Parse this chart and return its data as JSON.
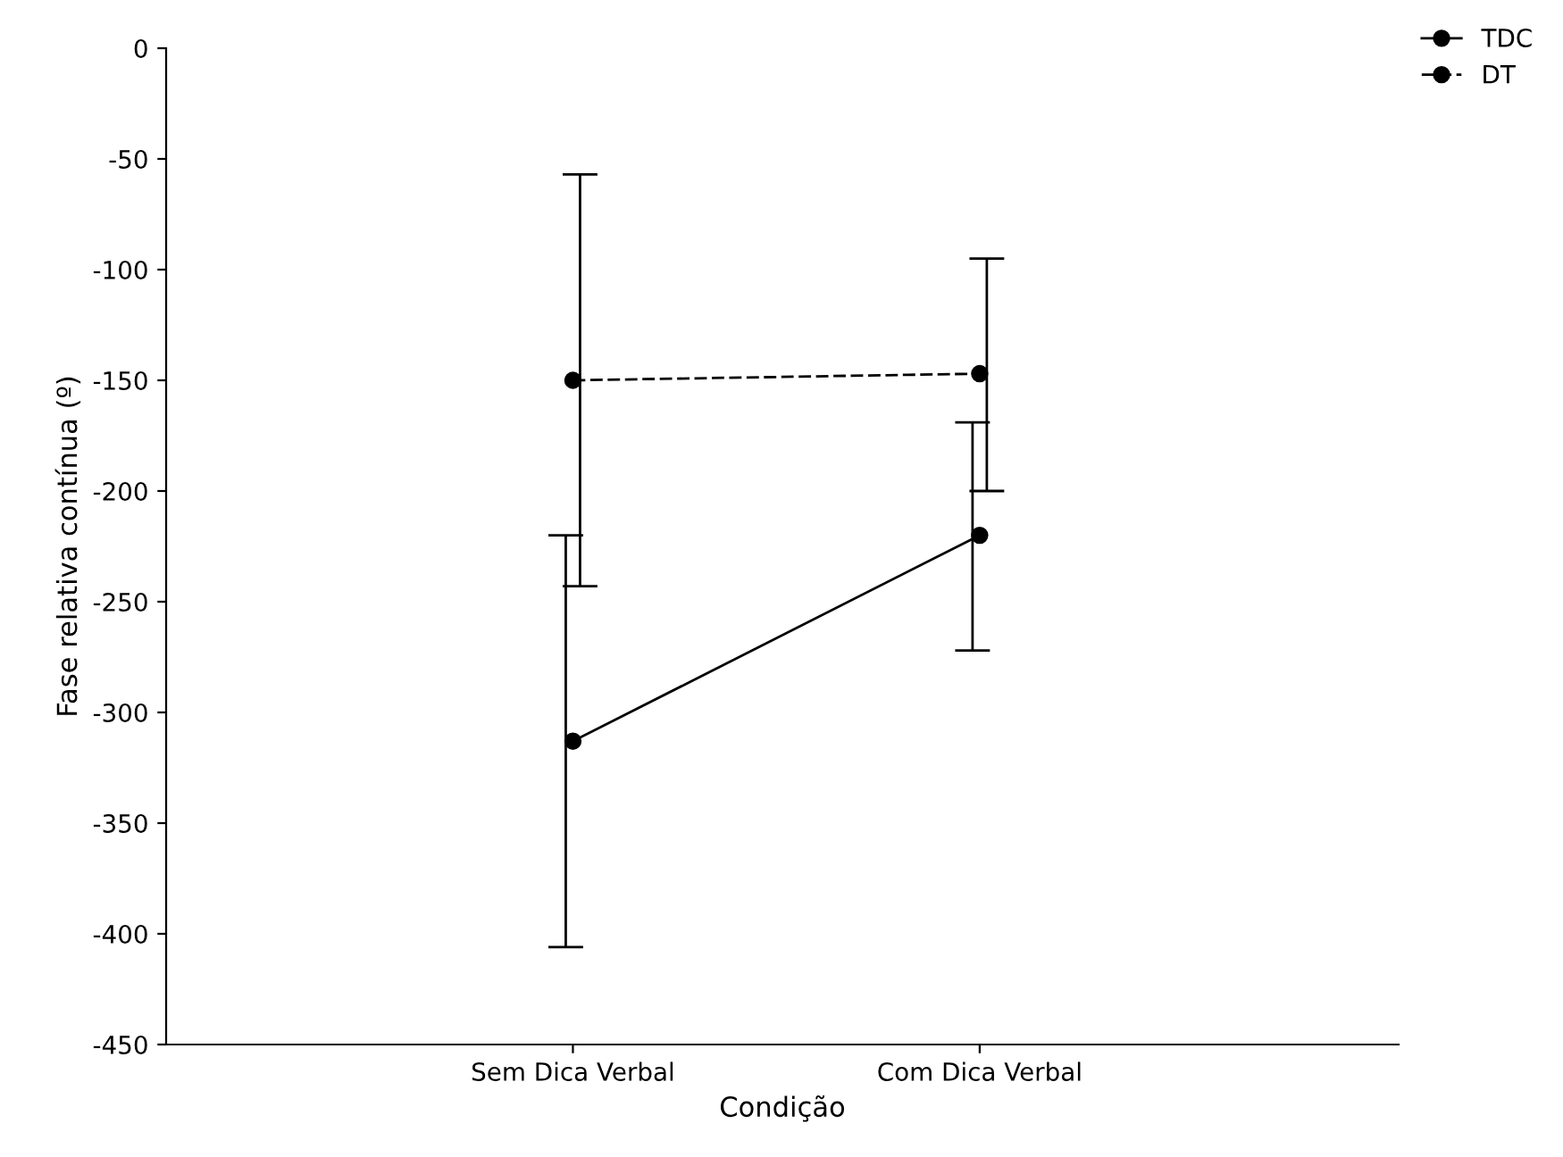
{
  "chart_data": {
    "type": "line",
    "xlabel": "Condição",
    "ylabel": "Fase relativa contínua (º)",
    "categories": [
      "Sem Dica Verbal",
      "Com Dica Verbal"
    ],
    "series": [
      {
        "name": "TDC",
        "color": "#000000",
        "line_style": "solid",
        "values": [
          -313,
          -220
        ],
        "errors": [
          [
            -406,
            -220
          ],
          [
            -272,
            -169
          ]
        ]
      },
      {
        "name": "DT",
        "color": "#000000",
        "line_style": "dashed",
        "values": [
          -150,
          -147
        ],
        "errors": [
          [
            -243,
            -57
          ],
          [
            -200,
            -95
          ]
        ]
      }
    ],
    "ylim": [
      -450,
      0
    ],
    "yticks": [
      -450,
      -400,
      -350,
      -300,
      -250,
      -200,
      -150,
      -100,
      -50,
      0
    ],
    "marker": "circle",
    "grid": false,
    "legend": "top right"
  }
}
